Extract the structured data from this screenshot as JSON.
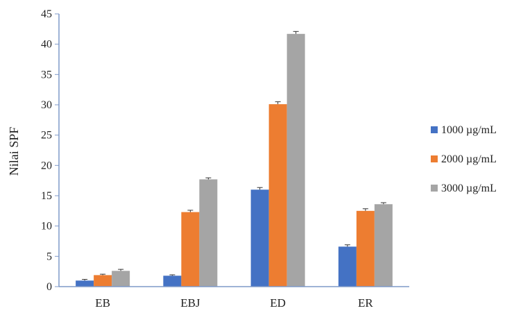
{
  "chart_data": {
    "type": "bar",
    "title": "",
    "xlabel": "",
    "ylabel": "Nilai SPF",
    "categories": [
      "EB",
      "EBJ",
      "ED",
      "ER"
    ],
    "ylim": [
      0,
      45
    ],
    "yticks": [
      0,
      5,
      10,
      15,
      20,
      25,
      30,
      35,
      40,
      45
    ],
    "grid": false,
    "legend_position": "right",
    "series": [
      {
        "name": "1000 µg/mL",
        "color": "#4472C4",
        "values": [
          1.0,
          1.8,
          16.0,
          6.6
        ],
        "errors": [
          0.2,
          0.15,
          0.35,
          0.3
        ]
      },
      {
        "name": "2000 µg/mL",
        "color": "#ED7D31",
        "values": [
          1.9,
          12.3,
          30.1,
          12.5
        ],
        "errors": [
          0.15,
          0.3,
          0.4,
          0.35
        ]
      },
      {
        "name": "3000 µg/mL",
        "color": "#A5A5A5",
        "values": [
          2.6,
          17.7,
          41.7,
          13.6
        ],
        "errors": [
          0.25,
          0.25,
          0.4,
          0.25
        ]
      }
    ]
  }
}
